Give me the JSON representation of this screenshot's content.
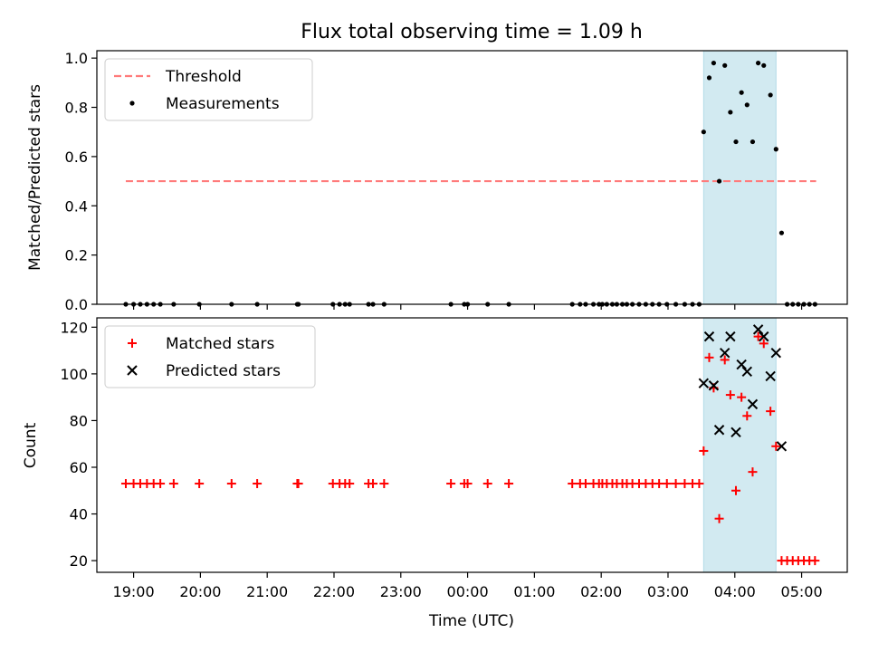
{
  "chart_data": [
    {
      "type": "scatter",
      "title": "Flux total observing time = 1.09 h",
      "ylabel": "Matched/Predicted stars",
      "ylim": [
        0,
        1.03
      ],
      "yticks": [
        "0.0",
        "0.2",
        "0.4",
        "0.6",
        "0.8",
        "1.0"
      ],
      "grid": false,
      "legend_position": "top-left",
      "highlight_span": {
        "start": "03:32",
        "end": "04:37",
        "color": "#add8e6"
      },
      "series": [
        {
          "name": "Threshold",
          "style": "dashed-line",
          "color": "#ff7b7b",
          "points": [
            [
              "18:53",
              0.5
            ],
            [
              "05:13",
              0.5
            ]
          ]
        },
        {
          "name": "Measurements",
          "style": "dot",
          "color": "#000000",
          "points": [
            [
              "18:53",
              0
            ],
            [
              "19:00",
              0
            ],
            [
              "19:06",
              0
            ],
            [
              "19:12",
              0
            ],
            [
              "19:18",
              0
            ],
            [
              "19:24",
              0
            ],
            [
              "19:36",
              0
            ],
            [
              "19:59",
              0
            ],
            [
              "20:28",
              0
            ],
            [
              "20:51",
              0
            ],
            [
              "21:27",
              0
            ],
            [
              "21:28",
              0
            ],
            [
              "21:59",
              0
            ],
            [
              "22:05",
              0
            ],
            [
              "22:10",
              0
            ],
            [
              "22:14",
              0
            ],
            [
              "22:31",
              0
            ],
            [
              "22:35",
              0
            ],
            [
              "22:45",
              0
            ],
            [
              "23:45",
              0
            ],
            [
              "23:57",
              0
            ],
            [
              "24:00",
              0
            ],
            [
              "24:18",
              0
            ],
            [
              "24:37",
              0
            ],
            [
              "25:34",
              0
            ],
            [
              "25:41",
              0
            ],
            [
              "25:46",
              0
            ],
            [
              "25:53",
              0
            ],
            [
              "25:58",
              0
            ],
            [
              "26:01",
              0
            ],
            [
              "26:05",
              0
            ],
            [
              "26:10",
              0
            ],
            [
              "26:14",
              0
            ],
            [
              "26:19",
              0
            ],
            [
              "26:23",
              0
            ],
            [
              "26:28",
              0
            ],
            [
              "26:34",
              0
            ],
            [
              "26:40",
              0
            ],
            [
              "26:46",
              0
            ],
            [
              "26:52",
              0
            ],
            [
              "26:59",
              0
            ],
            [
              "27:07",
              0
            ],
            [
              "27:15",
              0
            ],
            [
              "27:22",
              0
            ],
            [
              "27:28",
              0
            ],
            [
              "27:32",
              0.7
            ],
            [
              "27:37",
              0.92
            ],
            [
              "27:41",
              0.98
            ],
            [
              "27:46",
              0.5
            ],
            [
              "27:51",
              0.97
            ],
            [
              "27:56",
              0.78
            ],
            [
              "28:01",
              0.66
            ],
            [
              "28:06",
              0.86
            ],
            [
              "28:11",
              0.81
            ],
            [
              "28:16",
              0.66
            ],
            [
              "28:21",
              0.98
            ],
            [
              "28:26",
              0.97
            ],
            [
              "28:32",
              0.85
            ],
            [
              "28:37",
              0.63
            ],
            [
              "28:42",
              0.29
            ],
            [
              "28:47",
              0
            ],
            [
              "28:52",
              0
            ],
            [
              "28:57",
              0
            ],
            [
              "29:02",
              0
            ],
            [
              "29:07",
              0
            ],
            [
              "29:12",
              0
            ]
          ]
        }
      ]
    },
    {
      "type": "scatter",
      "xlabel": "Time (UTC)",
      "ylabel": "Count",
      "ylim": [
        15,
        124
      ],
      "yticks": [
        "20",
        "40",
        "60",
        "80",
        "100",
        "120"
      ],
      "xticks": [
        "19:00",
        "20:00",
        "21:00",
        "22:00",
        "23:00",
        "00:00",
        "01:00",
        "02:00",
        "03:00",
        "04:00",
        "05:00"
      ],
      "grid": false,
      "legend_position": "top-left",
      "highlight_span": {
        "start": "03:32",
        "end": "04:37",
        "color": "#add8e6"
      },
      "series": [
        {
          "name": "Matched stars",
          "style": "plus",
          "color": "#ff0000",
          "points": [
            [
              "18:53",
              53
            ],
            [
              "19:00",
              53
            ],
            [
              "19:06",
              53
            ],
            [
              "19:12",
              53
            ],
            [
              "19:18",
              53
            ],
            [
              "19:24",
              53
            ],
            [
              "19:36",
              53
            ],
            [
              "19:59",
              53
            ],
            [
              "20:28",
              53
            ],
            [
              "20:51",
              53
            ],
            [
              "21:27",
              53
            ],
            [
              "21:28",
              53
            ],
            [
              "21:59",
              53
            ],
            [
              "22:05",
              53
            ],
            [
              "22:10",
              53
            ],
            [
              "22:14",
              53
            ],
            [
              "22:31",
              53
            ],
            [
              "22:35",
              53
            ],
            [
              "22:45",
              53
            ],
            [
              "23:45",
              53
            ],
            [
              "23:57",
              53
            ],
            [
              "24:00",
              53
            ],
            [
              "24:18",
              53
            ],
            [
              "24:37",
              53
            ],
            [
              "25:34",
              53
            ],
            [
              "25:41",
              53
            ],
            [
              "25:46",
              53
            ],
            [
              "25:53",
              53
            ],
            [
              "25:58",
              53
            ],
            [
              "26:01",
              53
            ],
            [
              "26:05",
              53
            ],
            [
              "26:10",
              53
            ],
            [
              "26:14",
              53
            ],
            [
              "26:19",
              53
            ],
            [
              "26:23",
              53
            ],
            [
              "26:28",
              53
            ],
            [
              "26:34",
              53
            ],
            [
              "26:40",
              53
            ],
            [
              "26:46",
              53
            ],
            [
              "26:52",
              53
            ],
            [
              "26:59",
              53
            ],
            [
              "27:07",
              53
            ],
            [
              "27:15",
              53
            ],
            [
              "27:22",
              53
            ],
            [
              "27:28",
              53
            ],
            [
              "27:32",
              67
            ],
            [
              "27:37",
              107
            ],
            [
              "27:41",
              94
            ],
            [
              "27:46",
              38
            ],
            [
              "27:51",
              106
            ],
            [
              "27:56",
              91
            ],
            [
              "28:01",
              50
            ],
            [
              "28:06",
              90
            ],
            [
              "28:11",
              82
            ],
            [
              "28:16",
              58
            ],
            [
              "28:21",
              116
            ],
            [
              "28:26",
              113
            ],
            [
              "28:32",
              84
            ],
            [
              "28:37",
              69
            ],
            [
              "28:42",
              20
            ],
            [
              "28:47",
              20
            ],
            [
              "28:52",
              20
            ],
            [
              "28:57",
              20
            ],
            [
              "29:02",
              20
            ],
            [
              "29:07",
              20
            ],
            [
              "29:12",
              20
            ]
          ]
        },
        {
          "name": "Predicted stars",
          "style": "x",
          "color": "#000000",
          "points": [
            [
              "27:32",
              96
            ],
            [
              "27:37",
              116
            ],
            [
              "27:41",
              95
            ],
            [
              "27:46",
              76
            ],
            [
              "27:51",
              109
            ],
            [
              "27:56",
              116
            ],
            [
              "28:01",
              75
            ],
            [
              "28:06",
              104
            ],
            [
              "28:11",
              101
            ],
            [
              "28:16",
              87
            ],
            [
              "28:21",
              119
            ],
            [
              "28:26",
              116
            ],
            [
              "28:32",
              99
            ],
            [
              "28:37",
              109
            ],
            [
              "28:42",
              69
            ]
          ]
        }
      ]
    }
  ]
}
